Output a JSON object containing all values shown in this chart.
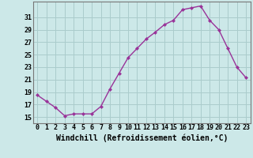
{
  "x": [
    0,
    1,
    2,
    3,
    4,
    5,
    6,
    7,
    8,
    9,
    10,
    11,
    12,
    13,
    14,
    15,
    16,
    17,
    18,
    19,
    20,
    21,
    22,
    23
  ],
  "y": [
    18.5,
    17.5,
    16.5,
    15.2,
    15.5,
    15.5,
    15.5,
    16.7,
    19.5,
    22.0,
    24.5,
    26.0,
    27.5,
    28.6,
    29.8,
    30.5,
    32.2,
    32.5,
    32.8,
    30.5,
    29.0,
    26.0,
    23.0,
    21.3
  ],
  "line_color": "#993399",
  "marker": "D",
  "marker_size": 2,
  "bg_color": "#cce8e8",
  "grid_color": "#aacccc",
  "xlabel": "Windchill (Refroidissement éolien,°C)",
  "xlabel_fontsize": 7,
  "ytick_labels": [
    "15",
    "17",
    "19",
    "21",
    "23",
    "25",
    "27",
    "29",
    "31"
  ],
  "ytick_values": [
    15,
    17,
    19,
    21,
    23,
    25,
    27,
    29,
    31
  ],
  "ylim": [
    14.0,
    33.5
  ],
  "xlim": [
    -0.5,
    23.5
  ],
  "xtick_labels": [
    "0",
    "1",
    "2",
    "3",
    "4",
    "5",
    "6",
    "7",
    "8",
    "9",
    "10",
    "11",
    "12",
    "13",
    "14",
    "15",
    "16",
    "17",
    "18",
    "19",
    "20",
    "21",
    "22",
    "23"
  ],
  "tick_fontsize": 6,
  "line_width": 1.0
}
